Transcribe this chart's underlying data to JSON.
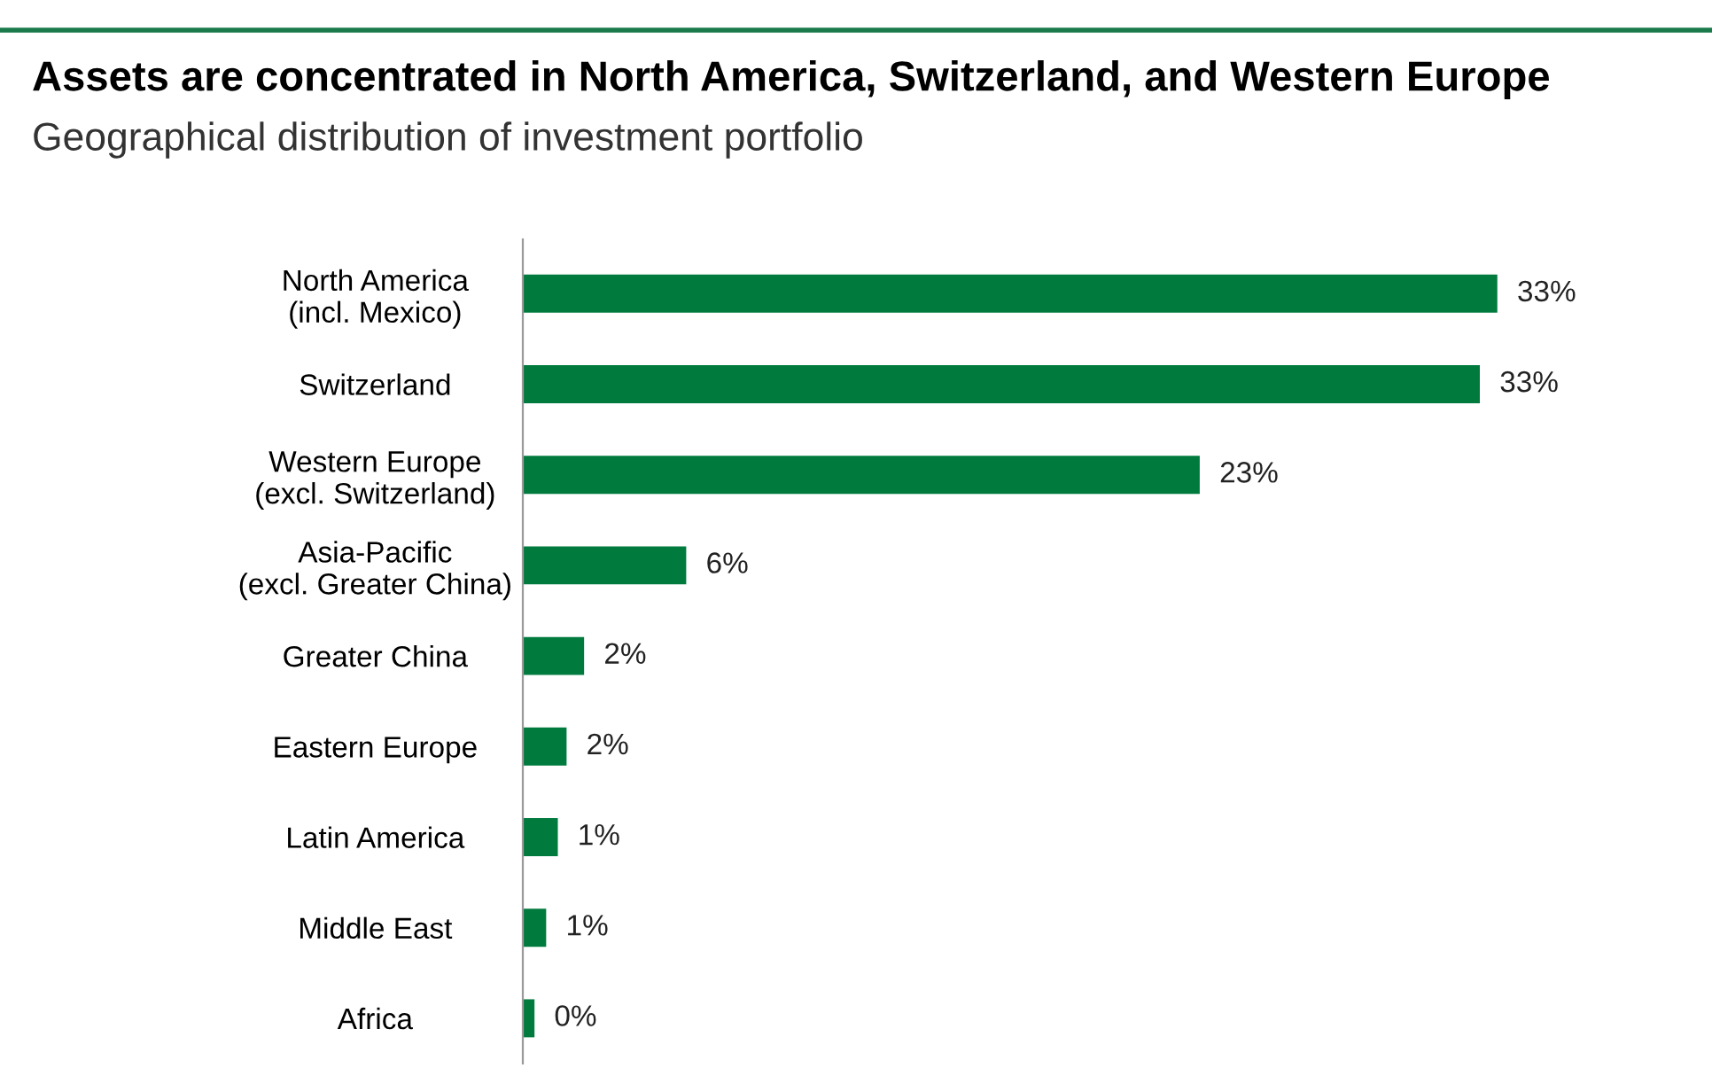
{
  "chart_data": {
    "type": "bar",
    "orientation": "horizontal",
    "title": "Assets are concentrated in North America, Switzerland, and Western Europe",
    "subtitle": "Geographical distribution of investment portfolio",
    "categories": [
      "North America\n(incl. Mexico)",
      "Switzerland",
      "Western Europe\n(excl. Switzerland)",
      "Asia-Pacific\n(excl. Greater China)",
      "Greater China",
      "Eastern Europe",
      "Latin America",
      "Middle East",
      "Africa"
    ],
    "values": [
      33.4,
      32.8,
      23.2,
      5.6,
      2.1,
      1.5,
      1.2,
      0.8,
      0.4
    ],
    "value_labels": [
      "33%",
      "33%",
      "23%",
      "6%",
      "2%",
      "2%",
      "1%",
      "1%",
      "0%"
    ],
    "color": "#007a3d",
    "grid": false,
    "legend": false
  }
}
